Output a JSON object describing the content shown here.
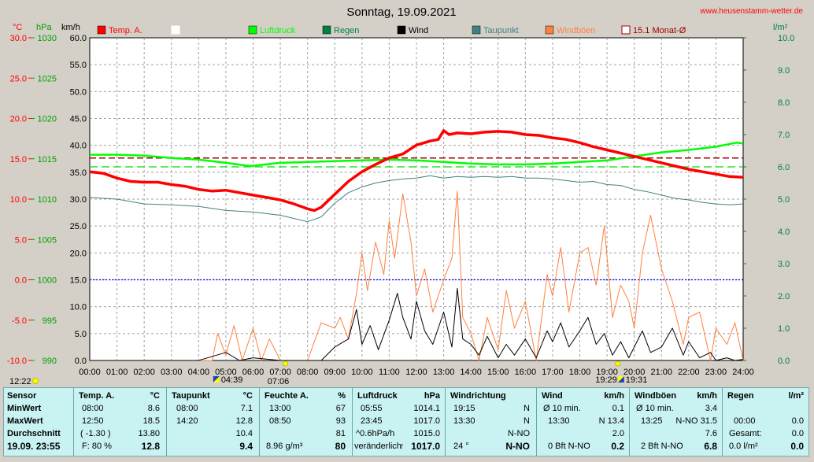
{
  "title": "Sonntag, 19.09.2021",
  "website": "www.heusenstamm-wetter.de",
  "axes": {
    "unit_temp": "°C",
    "unit_hpa": "hPa",
    "unit_kmh": "km/h",
    "unit_rain": "l/m²",
    "temp_ticks": [
      "30.0",
      "25.0",
      "20.0",
      "15.0",
      "10.0",
      "5.0",
      "0.0",
      "-5.0",
      "-10.0"
    ],
    "hpa_ticks": [
      "1030",
      "1025",
      "1020",
      "1015",
      "1010",
      "1005",
      "1000",
      "995",
      "990"
    ],
    "kmh_ticks": [
      "60.0",
      "55.0",
      "50.0",
      "45.0",
      "40.0",
      "35.0",
      "30.0",
      "25.0",
      "20.0",
      "15.0",
      "10.0",
      "5.0",
      "0.0"
    ],
    "rain_ticks": [
      "10.0",
      "9.0",
      "8.0",
      "7.0",
      "6.0",
      "5.0",
      "4.0",
      "3.0",
      "2.0",
      "1.0",
      "0.0"
    ],
    "time_ticks": [
      "00:00",
      "01:00",
      "02:00",
      "03:00",
      "04:00",
      "05:00",
      "06:00",
      "07:00",
      "08:00",
      "09:00",
      "10:00",
      "11:00",
      "12:00",
      "13:00",
      "14:00",
      "15:00",
      "16:00",
      "17:00",
      "18:00",
      "19:00",
      "20:00",
      "21:00",
      "22:00",
      "23:00",
      "24:00"
    ]
  },
  "legend": [
    {
      "label": "Temp. A.",
      "color": "#ff0000",
      "style": "fill"
    },
    {
      "label": "",
      "color": "#ffffff",
      "style": "box"
    },
    {
      "label": "Luftdruck",
      "color": "#00ff00",
      "style": "fill"
    },
    {
      "label": "Regen",
      "color": "#008040",
      "style": "fill"
    },
    {
      "label": "Wind",
      "color": "#000000",
      "style": "fill"
    },
    {
      "label": "Taupunkt",
      "color": "#408080",
      "style": "fill"
    },
    {
      "label": "Windböen",
      "color": "#ff8040",
      "style": "fill"
    },
    {
      "label": "15.1 Monat-Ø",
      "color": "#a00000",
      "style": "box"
    }
  ],
  "sun": {
    "current_time": "12:22",
    "sunrise_a": "04:39",
    "sunrise_b": "07:06",
    "sunset_a": "19:29",
    "sunset_b": "19:31"
  },
  "stats": {
    "sensor": {
      "header": "Sensor",
      "rows": [
        "MinWert",
        "MaxWert",
        "Durchschnitt"
      ],
      "footer": "19.09. 23:55"
    },
    "temp": {
      "header": "Temp. A.",
      "unit": "°C",
      "min_time": "08:00",
      "min_val": "8.6",
      "max_time": "12:50",
      "max_val": "18.5",
      "avg_note": "( -1.30 )",
      "avg_val": "13.80",
      "foot_left": "F: 80 %",
      "foot_val": "12.8"
    },
    "dew": {
      "header": "Taupunkt",
      "unit": "°C",
      "min_time": "08:00",
      "min_val": "7.1",
      "max_time": "14:20",
      "max_val": "12.8",
      "avg_val": "10.4",
      "foot_val": "9.4"
    },
    "hum": {
      "header": "Feuchte A.",
      "unit": "%",
      "min_time": "13:00",
      "min_val": "67",
      "max_time": "08:50",
      "max_val": "93",
      "avg_val": "81",
      "foot_left": "8.96 g/m³",
      "foot_val": "80"
    },
    "press": {
      "header": "Luftdruck",
      "unit": "hPa",
      "min_time": "05:55",
      "min_val": "1014.1",
      "max_time": "23:45",
      "max_val": "1017.0",
      "avg_note": "^0.6hPa/h",
      "avg_val": "1015.0",
      "foot_left": "veränderlich",
      "foot_val": "1017.0"
    },
    "wdir": {
      "header": "Windrichtung",
      "min_time": "19:15",
      "min_val": "N",
      "max_time": "13:30",
      "max_val": "N",
      "avg_val": "N-NO",
      "foot_left": "24 °",
      "foot_val": "N-NO"
    },
    "wind": {
      "header": "Wind",
      "unit": "km/h",
      "min_time": "Ø 10 min.",
      "min_val": "0.1",
      "max_time": "13:30",
      "max_val": "N 13.4",
      "avg_val": "2.0",
      "foot_left": "0 Bft N-NO",
      "foot_val": "0.2"
    },
    "gust": {
      "header": "Windböen",
      "unit": "km/h",
      "min_time": "Ø 10 min.",
      "min_val": "3.4",
      "max_time": "13:25",
      "max_val": "N-NO 31.5",
      "avg_val": "7.6",
      "foot_left": "2 Bft N-NO",
      "foot_val": "6.8"
    },
    "rain": {
      "header": "Regen",
      "unit": "l/m²",
      "min_time": "00:00",
      "min_val": "0.0",
      "avg_note": "Gesamt:",
      "avg_val": "0.0",
      "foot_left": "0.0 l/m²",
      "foot_val": "0.0"
    }
  },
  "chart_data": {
    "type": "line",
    "title": "Sonntag, 19.09.2021",
    "x_unit": "hours",
    "xlim": [
      0,
      24
    ],
    "reference_lines": {
      "monthly_avg_temp": 15.1,
      "zero_temp": 0.0
    },
    "series": [
      {
        "name": "Temp. A.",
        "color": "#ff0000",
        "axis": "temp",
        "width": 3.5,
        "x": [
          0,
          0.5,
          1,
          1.5,
          2,
          2.5,
          3,
          3.5,
          4,
          4.5,
          5,
          5.5,
          6,
          6.5,
          7,
          7.5,
          8,
          8.25,
          8.5,
          9,
          9.5,
          10,
          10.5,
          11,
          11.5,
          12,
          12.5,
          12.8,
          13,
          13.2,
          13.5,
          14,
          14.5,
          15,
          15.5,
          16,
          16.5,
          17,
          17.5,
          18,
          18.5,
          19,
          19.5,
          20,
          20.5,
          21,
          21.5,
          22,
          22.5,
          23,
          23.5,
          24
        ],
        "y": [
          13.4,
          13.2,
          12.6,
          12.2,
          12.1,
          12.1,
          11.8,
          11.6,
          11.2,
          11.0,
          11.1,
          10.8,
          10.5,
          10.2,
          9.9,
          9.4,
          8.8,
          8.6,
          9.0,
          10.6,
          12.2,
          13.4,
          14.3,
          15.1,
          15.6,
          16.7,
          17.2,
          17.4,
          18.5,
          18.0,
          18.2,
          18.1,
          18.3,
          18.4,
          18.3,
          18.0,
          17.9,
          17.6,
          17.4,
          17.0,
          16.5,
          16.1,
          15.7,
          15.3,
          14.9,
          14.5,
          14.1,
          13.7,
          13.4,
          13.1,
          12.8,
          12.7
        ]
      },
      {
        "name": "Taupunkt",
        "color": "#408080",
        "axis": "temp",
        "width": 1,
        "x": [
          0,
          1,
          2,
          3,
          4,
          5,
          6,
          7,
          8,
          8.5,
          9,
          9.5,
          10,
          10.5,
          11,
          11.5,
          12,
          12.5,
          13,
          13.5,
          14,
          14.5,
          15,
          15.5,
          16,
          16.5,
          17,
          17.5,
          18,
          18.5,
          19,
          19.5,
          20,
          20.5,
          21,
          21.5,
          22,
          22.5,
          23,
          23.5,
          24
        ],
        "y": [
          10.2,
          10.0,
          9.4,
          9.3,
          9.1,
          8.6,
          8.4,
          8.0,
          7.2,
          7.8,
          9.5,
          10.8,
          11.5,
          12.0,
          12.3,
          12.5,
          12.6,
          12.9,
          12.6,
          12.8,
          12.7,
          12.8,
          12.7,
          12.8,
          12.6,
          12.6,
          12.5,
          12.3,
          12.1,
          12.2,
          11.8,
          11.7,
          11.2,
          10.9,
          10.5,
          10.1,
          9.9,
          9.6,
          9.4,
          9.3,
          9.4
        ]
      },
      {
        "name": "Luftdruck",
        "color": "#00ff00",
        "axis": "hpa",
        "width": 2.5,
        "x": [
          0,
          1,
          2,
          3,
          4,
          5,
          5.9,
          7,
          8,
          9,
          10,
          11,
          12,
          13,
          14,
          15,
          16,
          17,
          18,
          19,
          20,
          21,
          22,
          23,
          23.75,
          24
        ],
        "y": [
          1015.5,
          1015.5,
          1015.4,
          1015.1,
          1014.9,
          1014.5,
          1014.1,
          1014.5,
          1014.6,
          1014.7,
          1014.8,
          1014.9,
          1014.8,
          1014.6,
          1014.4,
          1014.3,
          1014.3,
          1014.4,
          1014.6,
          1014.8,
          1015.3,
          1015.8,
          1016.1,
          1016.5,
          1017.0,
          1016.9
        ]
      },
      {
        "name": "Wind",
        "color": "#000000",
        "axis": "kmh",
        "width": 1,
        "x": [
          0,
          4,
          5,
          5.5,
          6,
          7,
          8.5,
          9,
          9.5,
          9.8,
          10,
          10.3,
          10.6,
          11,
          11.3,
          11.5,
          11.8,
          12,
          12.3,
          12.6,
          13,
          13.3,
          13.5,
          13.7,
          14,
          14.3,
          14.6,
          15,
          15.3,
          15.6,
          16,
          16.4,
          16.8,
          17,
          17.3,
          17.6,
          18,
          18.3,
          18.6,
          18.9,
          19.2,
          19.5,
          19.8,
          20,
          20.3,
          20.6,
          21,
          21.4,
          21.8,
          22,
          22.4,
          22.8,
          23,
          23.4,
          23.7,
          24
        ],
        "y": [
          0,
          0,
          1.5,
          0,
          0.5,
          0,
          0,
          2.5,
          4.0,
          9.5,
          3.0,
          6.5,
          2.0,
          7.5,
          12.5,
          8.0,
          4.0,
          11.0,
          5.5,
          3.0,
          9.0,
          2.5,
          13.4,
          4.0,
          3.0,
          1.0,
          4.5,
          0.5,
          3.0,
          1.0,
          4.0,
          0.5,
          5.5,
          3.5,
          7.0,
          2.5,
          5.5,
          8.0,
          3.0,
          5.0,
          1.0,
          3.5,
          0.5,
          2.5,
          5.5,
          1.5,
          2.5,
          6.0,
          1.0,
          3.5,
          0.5,
          1.5,
          0,
          0.5,
          0,
          0.2
        ]
      },
      {
        "name": "Windböen",
        "color": "#ff8040",
        "axis": "kmh",
        "width": 1,
        "x": [
          0,
          4.5,
          4.7,
          5,
          5.3,
          5.6,
          6,
          6.3,
          6.6,
          7,
          8,
          8.5,
          9,
          9.2,
          9.5,
          9.8,
          10,
          10.2,
          10.5,
          10.8,
          11,
          11.2,
          11.5,
          11.8,
          12,
          12.3,
          12.6,
          13,
          13.3,
          13.5,
          13.7,
          14,
          14.3,
          14.6,
          15,
          15.3,
          15.6,
          16,
          16.4,
          16.8,
          17,
          17.3,
          17.6,
          18,
          18.3,
          18.6,
          18.9,
          19.2,
          19.5,
          19.8,
          20,
          20.3,
          20.6,
          21,
          21.4,
          21.8,
          22,
          22.4,
          22.8,
          23,
          23.4,
          23.7,
          24
        ],
        "y": [
          0,
          0,
          5,
          1,
          6.5,
          0,
          6,
          0,
          4,
          0,
          0,
          7,
          6,
          8,
          4,
          12.5,
          20,
          13,
          22,
          16,
          26,
          19,
          31,
          22,
          12,
          17,
          9,
          15,
          19,
          31.5,
          8,
          5,
          0,
          8,
          2,
          13,
          6,
          11,
          0,
          16,
          12,
          21,
          9,
          20,
          21,
          14,
          25,
          8,
          14,
          11,
          6,
          20,
          27,
          17,
          11,
          3,
          8,
          9,
          0,
          6,
          3,
          7,
          0
        ]
      }
    ],
    "axes_ranges": {
      "temp": [
        -10,
        30
      ],
      "hpa": [
        990,
        1030
      ],
      "kmh": [
        0,
        60
      ],
      "rain": [
        0,
        10
      ]
    },
    "grid": true,
    "legend_position": "top"
  }
}
